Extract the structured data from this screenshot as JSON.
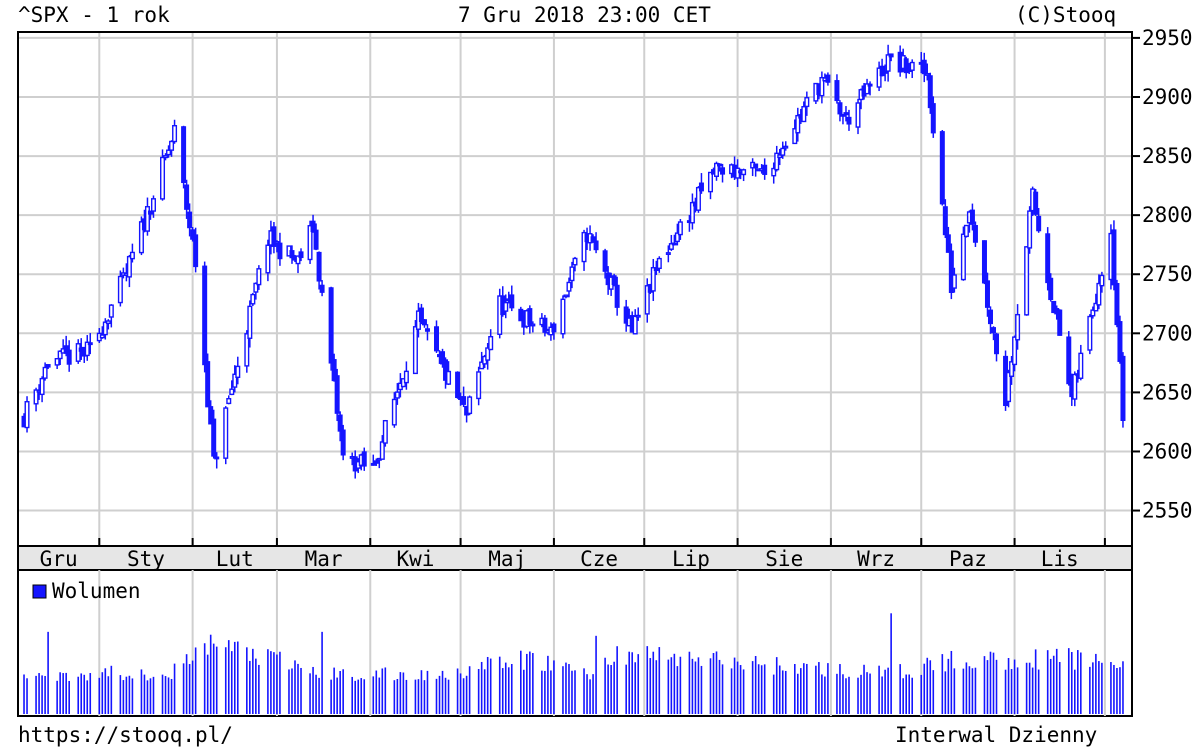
{
  "header": {
    "symbol": "^SPX - 1 rok",
    "datetime": "7 Gru 2018 23:00 CET",
    "copyright": "(C)Stooq"
  },
  "footer": {
    "url": "https://stooq.pl/",
    "interval": "Interwal Dzienny"
  },
  "colors": {
    "series": "#1414ff",
    "grid": "#cfcfcf",
    "month_bar": "#e6e6e6"
  },
  "chart_data": [
    {
      "type": "line",
      "title": "^SPX - 1 rok",
      "style": "candlestick",
      "y_tick_labels": [
        "2550",
        "2600",
        "2650",
        "2700",
        "2750",
        "2800",
        "2850",
        "2900",
        "2950"
      ],
      "ylim": [
        2520,
        2955
      ],
      "x_tick_labels": [
        "Gru",
        "Sty",
        "Lut",
        "Mar",
        "Kwi",
        "Maj",
        "Cze",
        "Lip",
        "Sie",
        "Wrz",
        "Paz",
        "Lis"
      ],
      "grid": true,
      "series": [
        {
          "x": [
            "2017-12-07",
            "2017-12-15",
            "2017-12-29",
            "2018-01-10",
            "2018-01-26",
            "2018-02-02",
            "2018-02-08",
            "2018-02-26",
            "2018-03-08",
            "2018-03-13",
            "2018-03-23",
            "2018-04-02",
            "2018-04-17",
            "2018-05-03",
            "2018-05-14",
            "2018-05-31",
            "2018-06-12",
            "2018-06-27",
            "2018-07-06",
            "2018-07-25",
            "2018-08-10",
            "2018-08-29",
            "2018-09-06",
            "2018-09-20",
            "2018-10-03",
            "2018-10-11",
            "2018-10-17",
            "2018-10-29",
            "2018-11-07",
            "2018-11-20",
            "2018-12-03",
            "2018-12-07"
          ],
          "values": [
            2630,
            2675,
            2685,
            2750,
            2870,
            2760,
            2590,
            2780,
            2760,
            2790,
            2595,
            2585,
            2710,
            2630,
            2725,
            2700,
            2785,
            2700,
            2760,
            2840,
            2835,
            2915,
            2880,
            2930,
            2920,
            2740,
            2810,
            2645,
            2815,
            2645,
            2790,
            2630
          ]
        }
      ]
    },
    {
      "type": "bar",
      "title": "Wolumen",
      "legend": [
        "Wolumen"
      ],
      "series": [
        {
          "name": "Wolumen",
          "x": [
            "2017-12-07",
            "2017-12-15",
            "2018-01-26",
            "2018-02-08",
            "2018-03-16",
            "2018-04-20",
            "2018-05-24",
            "2018-06-15",
            "2018-06-22",
            "2018-09-21",
            "2018-10-11",
            "2018-11-20",
            "2018-12-07"
          ],
          "values": [
            30,
            62,
            32,
            54,
            62,
            29,
            41,
            59,
            46,
            76,
            40,
            42,
            38
          ]
        }
      ]
    }
  ]
}
